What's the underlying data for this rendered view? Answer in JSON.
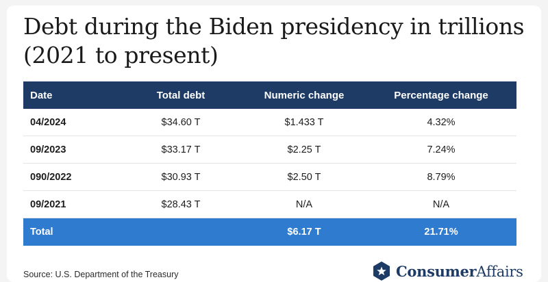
{
  "chart_data": {
    "type": "table",
    "title": "Debt during the Biden presidency in trillions (2021 to present)",
    "columns": [
      "Date",
      "Total debt",
      "Numeric change",
      "Percentage change"
    ],
    "rows": [
      [
        "04/2024",
        "$34.60 T",
        "$1.433 T",
        "4.32%"
      ],
      [
        "09/2023",
        "$33.17 T",
        "$2.25 T",
        "7.24%"
      ],
      [
        "090/2022",
        "$30.93 T",
        "$2.50 T",
        "8.79%"
      ],
      [
        "09/2021",
        "$28.43 T",
        "N/A",
        "N/A"
      ]
    ],
    "total_row": [
      "Total",
      "",
      "$6.17 T",
      "21.71%"
    ]
  },
  "source": "Source: U.S. Department of the Treasury",
  "brand": {
    "name_bold": "Consumer",
    "name_regular": "Affairs",
    "icon": "star-hexagon-icon"
  },
  "colors": {
    "header_bg": "#1d3b65",
    "total_bg": "#2e7bd0",
    "brand": "#1d3b65"
  }
}
